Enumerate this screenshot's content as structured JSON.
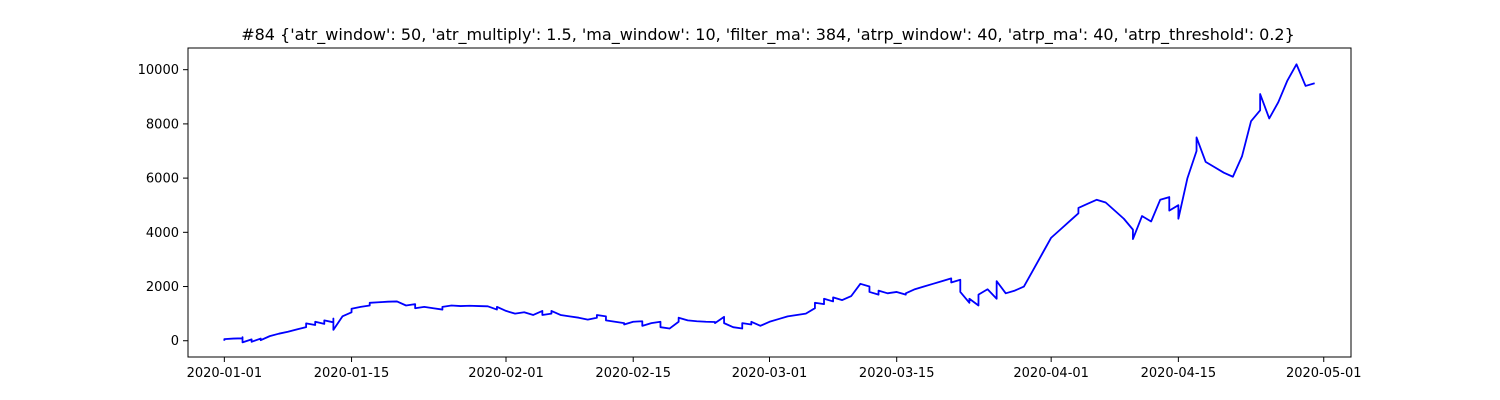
{
  "chart_data": {
    "type": "line",
    "title": "#84 {'atr_window': 50, 'atr_multiply': 1.5, 'ma_window': 10, 'filter_ma': 384, 'atrp_window': 40, 'atrp_ma': 40, 'atrp_threshold': 0.2}",
    "xlabel": "",
    "ylabel": "",
    "xlim": [
      "2019-12-28",
      "2020-05-04"
    ],
    "ylim": [
      -600,
      10800
    ],
    "x_ticks": [
      "2020-01-01",
      "2020-01-15",
      "2020-02-01",
      "2020-02-15",
      "2020-03-01",
      "2020-03-15",
      "2020-04-01",
      "2020-04-15",
      "2020-05-01"
    ],
    "y_ticks": [
      0,
      2000,
      4000,
      6000,
      8000,
      10000
    ],
    "grid": false,
    "series": [
      {
        "color": "#0000ff",
        "points": [
          [
            "2020-01-01",
            0
          ],
          [
            "2020-01-01",
            60
          ],
          [
            "2020-01-02",
            80
          ],
          [
            "2020-01-03",
            90
          ],
          [
            "2020-01-03",
            130
          ],
          [
            "2020-01-03",
            -60
          ],
          [
            "2020-01-04",
            50
          ],
          [
            "2020-01-04",
            -40
          ],
          [
            "2020-01-05",
            80
          ],
          [
            "2020-01-05",
            20
          ],
          [
            "2020-01-06",
            170
          ],
          [
            "2020-01-07",
            260
          ],
          [
            "2020-01-08",
            330
          ],
          [
            "2020-01-09",
            420
          ],
          [
            "2020-01-10",
            500
          ],
          [
            "2020-01-10",
            640
          ],
          [
            "2020-01-11",
            580
          ],
          [
            "2020-01-11",
            700
          ],
          [
            "2020-01-12",
            620
          ],
          [
            "2020-01-12",
            750
          ],
          [
            "2020-01-13",
            680
          ],
          [
            "2020-01-13",
            820
          ],
          [
            "2020-01-13",
            400
          ],
          [
            "2020-01-14",
            900
          ],
          [
            "2020-01-15",
            1050
          ],
          [
            "2020-01-15",
            1180
          ],
          [
            "2020-01-16",
            1250
          ],
          [
            "2020-01-17",
            1300
          ],
          [
            "2020-01-17",
            1400
          ],
          [
            "2020-01-18",
            1420
          ],
          [
            "2020-01-19",
            1440
          ],
          [
            "2020-01-20",
            1450
          ],
          [
            "2020-01-21",
            1300
          ],
          [
            "2020-01-22",
            1350
          ],
          [
            "2020-01-22",
            1200
          ],
          [
            "2020-01-23",
            1250
          ],
          [
            "2020-01-24",
            1200
          ],
          [
            "2020-01-25",
            1150
          ],
          [
            "2020-01-25",
            1250
          ],
          [
            "2020-01-26",
            1300
          ],
          [
            "2020-01-27",
            1280
          ],
          [
            "2020-01-28",
            1290
          ],
          [
            "2020-01-29",
            1280
          ],
          [
            "2020-01-30",
            1270
          ],
          [
            "2020-01-31",
            1150
          ],
          [
            "2020-01-31",
            1250
          ],
          [
            "2020-02-01",
            1100
          ],
          [
            "2020-02-02",
            1000
          ],
          [
            "2020-02-03",
            1050
          ],
          [
            "2020-02-04",
            950
          ],
          [
            "2020-02-05",
            1100
          ],
          [
            "2020-02-05",
            950
          ],
          [
            "2020-02-06",
            1000
          ],
          [
            "2020-02-06",
            1100
          ],
          [
            "2020-02-07",
            950
          ],
          [
            "2020-02-08",
            900
          ],
          [
            "2020-02-09",
            850
          ],
          [
            "2020-02-10",
            780
          ],
          [
            "2020-02-11",
            850
          ],
          [
            "2020-02-11",
            950
          ],
          [
            "2020-02-12",
            900
          ],
          [
            "2020-02-12",
            750
          ],
          [
            "2020-02-13",
            700
          ],
          [
            "2020-02-14",
            650
          ],
          [
            "2020-02-14",
            600
          ],
          [
            "2020-02-15",
            700
          ],
          [
            "2020-02-16",
            720
          ],
          [
            "2020-02-16",
            550
          ],
          [
            "2020-02-17",
            650
          ],
          [
            "2020-02-18",
            700
          ],
          [
            "2020-02-18",
            500
          ],
          [
            "2020-02-19",
            450
          ],
          [
            "2020-02-20",
            700
          ],
          [
            "2020-02-20",
            850
          ],
          [
            "2020-02-21",
            750
          ],
          [
            "2020-02-22",
            720
          ],
          [
            "2020-02-23",
            700
          ],
          [
            "2020-02-24",
            690
          ],
          [
            "2020-02-24",
            650
          ],
          [
            "2020-02-25",
            880
          ],
          [
            "2020-02-25",
            650
          ],
          [
            "2020-02-26",
            500
          ],
          [
            "2020-02-27",
            450
          ],
          [
            "2020-02-27",
            650
          ],
          [
            "2020-02-28",
            600
          ],
          [
            "2020-02-28",
            700
          ],
          [
            "2020-02-29",
            550
          ],
          [
            "2020-03-01",
            700
          ],
          [
            "2020-03-02",
            800
          ],
          [
            "2020-03-03",
            900
          ],
          [
            "2020-03-04",
            950
          ],
          [
            "2020-03-05",
            1000
          ],
          [
            "2020-03-06",
            1200
          ],
          [
            "2020-03-06",
            1400
          ],
          [
            "2020-03-07",
            1350
          ],
          [
            "2020-03-07",
            1550
          ],
          [
            "2020-03-08",
            1450
          ],
          [
            "2020-03-08",
            1600
          ],
          [
            "2020-03-09",
            1500
          ],
          [
            "2020-03-10",
            1650
          ],
          [
            "2020-03-11",
            2100
          ],
          [
            "2020-03-12",
            2000
          ],
          [
            "2020-03-12",
            1800
          ],
          [
            "2020-03-13",
            1700
          ],
          [
            "2020-03-13",
            1850
          ],
          [
            "2020-03-14",
            1750
          ],
          [
            "2020-03-15",
            1800
          ],
          [
            "2020-03-16",
            1700
          ],
          [
            "2020-03-16",
            1750
          ],
          [
            "2020-03-17",
            1900
          ],
          [
            "2020-03-18",
            2000
          ],
          [
            "2020-03-19",
            2100
          ],
          [
            "2020-03-20",
            2200
          ],
          [
            "2020-03-21",
            2300
          ],
          [
            "2020-03-21",
            2150
          ],
          [
            "2020-03-22",
            2250
          ],
          [
            "2020-03-22",
            1800
          ],
          [
            "2020-03-23",
            1400
          ],
          [
            "2020-03-23",
            1550
          ],
          [
            "2020-03-24",
            1300
          ],
          [
            "2020-03-24",
            1700
          ],
          [
            "2020-03-25",
            1900
          ],
          [
            "2020-03-26",
            1550
          ],
          [
            "2020-03-26",
            2200
          ],
          [
            "2020-03-27",
            1750
          ],
          [
            "2020-03-28",
            1850
          ],
          [
            "2020-03-29",
            2000
          ],
          [
            "2020-03-30",
            2600
          ],
          [
            "2020-03-31",
            3200
          ],
          [
            "2020-04-01",
            3800
          ],
          [
            "2020-04-02",
            4100
          ],
          [
            "2020-04-03",
            4400
          ],
          [
            "2020-04-04",
            4700
          ],
          [
            "2020-04-04",
            4900
          ],
          [
            "2020-04-05",
            5050
          ],
          [
            "2020-04-06",
            5200
          ],
          [
            "2020-04-07",
            5100
          ],
          [
            "2020-04-08",
            4800
          ],
          [
            "2020-04-09",
            4500
          ],
          [
            "2020-04-10",
            4100
          ],
          [
            "2020-04-10",
            3750
          ],
          [
            "2020-04-11",
            4600
          ],
          [
            "2020-04-12",
            4400
          ],
          [
            "2020-04-13",
            5200
          ],
          [
            "2020-04-14",
            5300
          ],
          [
            "2020-04-14",
            4800
          ],
          [
            "2020-04-15",
            5000
          ],
          [
            "2020-04-15",
            4500
          ],
          [
            "2020-04-16",
            6000
          ],
          [
            "2020-04-17",
            7000
          ],
          [
            "2020-04-17",
            7500
          ],
          [
            "2020-04-18",
            6600
          ],
          [
            "2020-04-19",
            6400
          ],
          [
            "2020-04-20",
            6200
          ],
          [
            "2020-04-21",
            6050
          ],
          [
            "2020-04-22",
            6800
          ],
          [
            "2020-04-23",
            8100
          ],
          [
            "2020-04-24",
            8500
          ],
          [
            "2020-04-24",
            9100
          ],
          [
            "2020-04-25",
            8200
          ],
          [
            "2020-04-26",
            8800
          ],
          [
            "2020-04-27",
            9600
          ],
          [
            "2020-04-28",
            10200
          ],
          [
            "2020-04-29",
            9400
          ],
          [
            "2020-04-30",
            9500
          ]
        ]
      }
    ]
  }
}
